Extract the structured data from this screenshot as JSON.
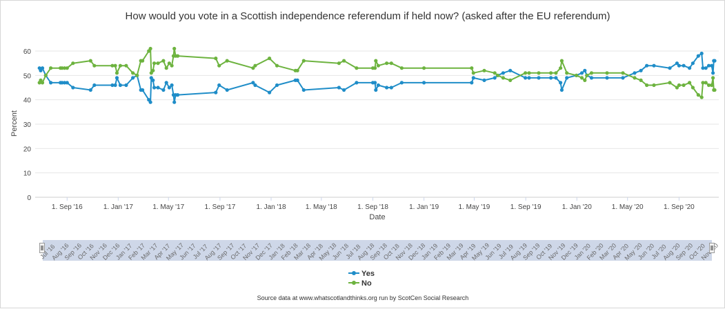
{
  "chart_data": {
    "type": "line",
    "title": "How would you vote in a Scottish independence referendum if held now? (asked after the EU referendum)",
    "xlabel": "Date",
    "ylabel": "Percent",
    "ylim": [
      0,
      60
    ],
    "yticks": [
      "0",
      "10",
      "20",
      "30",
      "40",
      "50",
      "60"
    ],
    "xlim": [
      "2016-06-25",
      "2020-11-25"
    ],
    "xticks": [
      {
        "date": "2016-09-01",
        "label": "1. Sep '16"
      },
      {
        "date": "2017-01-01",
        "label": "1. Jan '17"
      },
      {
        "date": "2017-05-01",
        "label": "1. May '17"
      },
      {
        "date": "2017-09-01",
        "label": "1. Sep '17"
      },
      {
        "date": "2018-01-01",
        "label": "1. Jan '18"
      },
      {
        "date": "2018-05-01",
        "label": "1. May '18"
      },
      {
        "date": "2018-09-01",
        "label": "1. Sep '18"
      },
      {
        "date": "2019-01-01",
        "label": "1. Jan '19"
      },
      {
        "date": "2019-05-01",
        "label": "1. May '19"
      },
      {
        "date": "2019-09-01",
        "label": "1. Sep '19"
      },
      {
        "date": "2020-01-01",
        "label": "1. Jan '20"
      },
      {
        "date": "2020-05-01",
        "label": "1. May '20"
      },
      {
        "date": "2020-09-01",
        "label": "1. Sep '20"
      }
    ],
    "navigator_labels": [
      "Jul '16",
      "Aug '16",
      "Sep '16",
      "Oct '16",
      "Nov '16",
      "Dec '16",
      "Jan '17",
      "Feb '17",
      "Mar '17",
      "Apr '17",
      "May '17",
      "Jun '17",
      "Jul '17",
      "Aug '17",
      "Sep '17",
      "Oct '17",
      "Nov '17",
      "Dec '17",
      "Jan '18",
      "Feb '18",
      "Mar '18",
      "Apr '18",
      "May '18",
      "Jun '18",
      "Jul '18",
      "Aug '18",
      "Sep '18",
      "Oct '18",
      "Nov '18",
      "Dec '18",
      "Jan '19",
      "Feb '19",
      "Mar '19",
      "Apr '19",
      "May '19",
      "Jun '19",
      "Jul '19",
      "Aug '19",
      "Sep '19",
      "Oct '19",
      "Nov '19",
      "Dec '19",
      "Jan '20",
      "Feb '20",
      "Mar '20",
      "Apr '20",
      "May '20",
      "Jun '20",
      "Jul '20",
      "Aug '20",
      "Sep '20",
      "Oct '20",
      "Nov '20"
    ],
    "grid": true,
    "legend_position": "bottom-center",
    "series": [
      {
        "name": "Yes",
        "color": "#1f8dc8",
        "points": [
          [
            "2016-06-27",
            53
          ],
          [
            "2016-06-30",
            52
          ],
          [
            "2016-07-04",
            53
          ],
          [
            "2016-07-12",
            50
          ],
          [
            "2016-07-24",
            47
          ],
          [
            "2016-08-16",
            47
          ],
          [
            "2016-08-20",
            47
          ],
          [
            "2016-08-26",
            47
          ],
          [
            "2016-09-01",
            47
          ],
          [
            "2016-09-15",
            45
          ],
          [
            "2016-10-27",
            44
          ],
          [
            "2016-11-05",
            46
          ],
          [
            "2016-12-18",
            46
          ],
          [
            "2016-12-25",
            46
          ],
          [
            "2016-12-29",
            49
          ],
          [
            "2017-01-06",
            46
          ],
          [
            "2017-01-20",
            46
          ],
          [
            "2017-02-05",
            49
          ],
          [
            "2017-02-15",
            50
          ],
          [
            "2017-02-24",
            44
          ],
          [
            "2017-02-28",
            44
          ],
          [
            "2017-03-15",
            40
          ],
          [
            "2017-03-19",
            39
          ],
          [
            "2017-03-21",
            49
          ],
          [
            "2017-03-25",
            48
          ],
          [
            "2017-03-28",
            45
          ],
          [
            "2017-04-06",
            45
          ],
          [
            "2017-04-19",
            44
          ],
          [
            "2017-04-26",
            47
          ],
          [
            "2017-05-03",
            45
          ],
          [
            "2017-05-09",
            46
          ],
          [
            "2017-05-13",
            42
          ],
          [
            "2017-05-15",
            39
          ],
          [
            "2017-05-18",
            42
          ],
          [
            "2017-05-23",
            42
          ],
          [
            "2017-08-22",
            43
          ],
          [
            "2017-08-30",
            46
          ],
          [
            "2017-09-18",
            44
          ],
          [
            "2017-11-19",
            47
          ],
          [
            "2017-11-24",
            46
          ],
          [
            "2017-12-28",
            43
          ],
          [
            "2018-01-15",
            46
          ],
          [
            "2018-02-28",
            48
          ],
          [
            "2018-03-05",
            48
          ],
          [
            "2018-03-20",
            44
          ],
          [
            "2018-06-12",
            45
          ],
          [
            "2018-06-24",
            44
          ],
          [
            "2018-07-24",
            47
          ],
          [
            "2018-09-01",
            47
          ],
          [
            "2018-09-06",
            47
          ],
          [
            "2018-09-08",
            44
          ],
          [
            "2018-09-14",
            46
          ],
          [
            "2018-10-04",
            45
          ],
          [
            "2018-10-15",
            45
          ],
          [
            "2018-11-09",
            47
          ],
          [
            "2019-01-01",
            47
          ],
          [
            "2019-04-25",
            47
          ],
          [
            "2019-04-29",
            49
          ],
          [
            "2019-05-25",
            48
          ],
          [
            "2019-06-19",
            49
          ],
          [
            "2019-06-26",
            50
          ],
          [
            "2019-07-09",
            51
          ],
          [
            "2019-07-26",
            52
          ],
          [
            "2019-08-31",
            49
          ],
          [
            "2019-09-09",
            49
          ],
          [
            "2019-10-02",
            49
          ],
          [
            "2019-10-31",
            49
          ],
          [
            "2019-11-12",
            49
          ],
          [
            "2019-11-23",
            47
          ],
          [
            "2019-11-26",
            44
          ],
          [
            "2019-12-08",
            49
          ],
          [
            "2019-12-31",
            50
          ],
          [
            "2020-01-13",
            51
          ],
          [
            "2020-01-20",
            52
          ],
          [
            "2020-01-25",
            50
          ],
          [
            "2020-02-05",
            49
          ],
          [
            "2020-03-13",
            49
          ],
          [
            "2020-04-20",
            49
          ],
          [
            "2020-05-18",
            51
          ],
          [
            "2020-06-02",
            52
          ],
          [
            "2020-06-16",
            54
          ],
          [
            "2020-07-03",
            54
          ],
          [
            "2020-08-10",
            53
          ],
          [
            "2020-08-27",
            55
          ],
          [
            "2020-09-01",
            54
          ],
          [
            "2020-09-12",
            54
          ],
          [
            "2020-09-26",
            53
          ],
          [
            "2020-10-04",
            55
          ],
          [
            "2020-10-17",
            58
          ],
          [
            "2020-10-25",
            59
          ],
          [
            "2020-10-28",
            53
          ],
          [
            "2020-11-04",
            53
          ],
          [
            "2020-11-11",
            54
          ],
          [
            "2020-11-18",
            54
          ],
          [
            "2020-11-21",
            51
          ],
          [
            "2020-11-23",
            56
          ],
          [
            "2020-11-25",
            56
          ]
        ]
      },
      {
        "name": "No",
        "color": "#6db33f",
        "points": [
          [
            "2016-06-27",
            47
          ],
          [
            "2016-06-30",
            48
          ],
          [
            "2016-07-04",
            47
          ],
          [
            "2016-07-12",
            50
          ],
          [
            "2016-07-24",
            53
          ],
          [
            "2016-08-16",
            53
          ],
          [
            "2016-08-20",
            53
          ],
          [
            "2016-08-26",
            53
          ],
          [
            "2016-09-01",
            53
          ],
          [
            "2016-09-15",
            55
          ],
          [
            "2016-10-27",
            56
          ],
          [
            "2016-11-05",
            54
          ],
          [
            "2016-12-18",
            54
          ],
          [
            "2016-12-25",
            54
          ],
          [
            "2016-12-29",
            51
          ],
          [
            "2017-01-06",
            54
          ],
          [
            "2017-01-20",
            54
          ],
          [
            "2017-02-05",
            51
          ],
          [
            "2017-02-15",
            50
          ],
          [
            "2017-02-24",
            56
          ],
          [
            "2017-02-28",
            56
          ],
          [
            "2017-03-15",
            60
          ],
          [
            "2017-03-19",
            61
          ],
          [
            "2017-03-21",
            51
          ],
          [
            "2017-03-25",
            52
          ],
          [
            "2017-03-28",
            55
          ],
          [
            "2017-04-06",
            55
          ],
          [
            "2017-04-19",
            56
          ],
          [
            "2017-04-26",
            53
          ],
          [
            "2017-05-03",
            55
          ],
          [
            "2017-05-09",
            54
          ],
          [
            "2017-05-13",
            58
          ],
          [
            "2017-05-15",
            61
          ],
          [
            "2017-05-18",
            58
          ],
          [
            "2017-05-23",
            58
          ],
          [
            "2017-08-22",
            57
          ],
          [
            "2017-08-30",
            54
          ],
          [
            "2017-09-18",
            56
          ],
          [
            "2017-11-19",
            53
          ],
          [
            "2017-11-24",
            54
          ],
          [
            "2017-12-28",
            57
          ],
          [
            "2018-01-15",
            54
          ],
          [
            "2018-02-28",
            52
          ],
          [
            "2018-03-05",
            52
          ],
          [
            "2018-03-20",
            56
          ],
          [
            "2018-06-12",
            55
          ],
          [
            "2018-06-24",
            56
          ],
          [
            "2018-07-24",
            53
          ],
          [
            "2018-09-01",
            53
          ],
          [
            "2018-09-06",
            53
          ],
          [
            "2018-09-08",
            56
          ],
          [
            "2018-09-14",
            54
          ],
          [
            "2018-10-04",
            55
          ],
          [
            "2018-10-15",
            55
          ],
          [
            "2018-11-09",
            53
          ],
          [
            "2019-01-01",
            53
          ],
          [
            "2019-04-25",
            53
          ],
          [
            "2019-04-29",
            51
          ],
          [
            "2019-05-25",
            52
          ],
          [
            "2019-06-19",
            51
          ],
          [
            "2019-06-26",
            50
          ],
          [
            "2019-07-09",
            49
          ],
          [
            "2019-07-26",
            48
          ],
          [
            "2019-08-31",
            51
          ],
          [
            "2019-09-09",
            51
          ],
          [
            "2019-10-02",
            51
          ],
          [
            "2019-10-31",
            51
          ],
          [
            "2019-11-12",
            51
          ],
          [
            "2019-11-23",
            53
          ],
          [
            "2019-11-26",
            56
          ],
          [
            "2019-12-08",
            51
          ],
          [
            "2019-12-31",
            50
          ],
          [
            "2020-01-13",
            49
          ],
          [
            "2020-01-20",
            48
          ],
          [
            "2020-01-25",
            50
          ],
          [
            "2020-02-05",
            51
          ],
          [
            "2020-03-13",
            51
          ],
          [
            "2020-04-20",
            51
          ],
          [
            "2020-05-18",
            49
          ],
          [
            "2020-06-02",
            48
          ],
          [
            "2020-06-16",
            46
          ],
          [
            "2020-07-03",
            46
          ],
          [
            "2020-08-10",
            47
          ],
          [
            "2020-08-27",
            45
          ],
          [
            "2020-09-01",
            46
          ],
          [
            "2020-09-12",
            46
          ],
          [
            "2020-09-26",
            47
          ],
          [
            "2020-10-04",
            45
          ],
          [
            "2020-10-17",
            42
          ],
          [
            "2020-10-25",
            41
          ],
          [
            "2020-10-28",
            47
          ],
          [
            "2020-11-04",
            47
          ],
          [
            "2020-11-11",
            46
          ],
          [
            "2020-11-18",
            46
          ],
          [
            "2020-11-21",
            49
          ],
          [
            "2020-11-23",
            44
          ],
          [
            "2020-11-25",
            44
          ]
        ]
      }
    ]
  },
  "credits": "Source data at www.whatscotlandthinks.org run by ScotCen Social Research"
}
